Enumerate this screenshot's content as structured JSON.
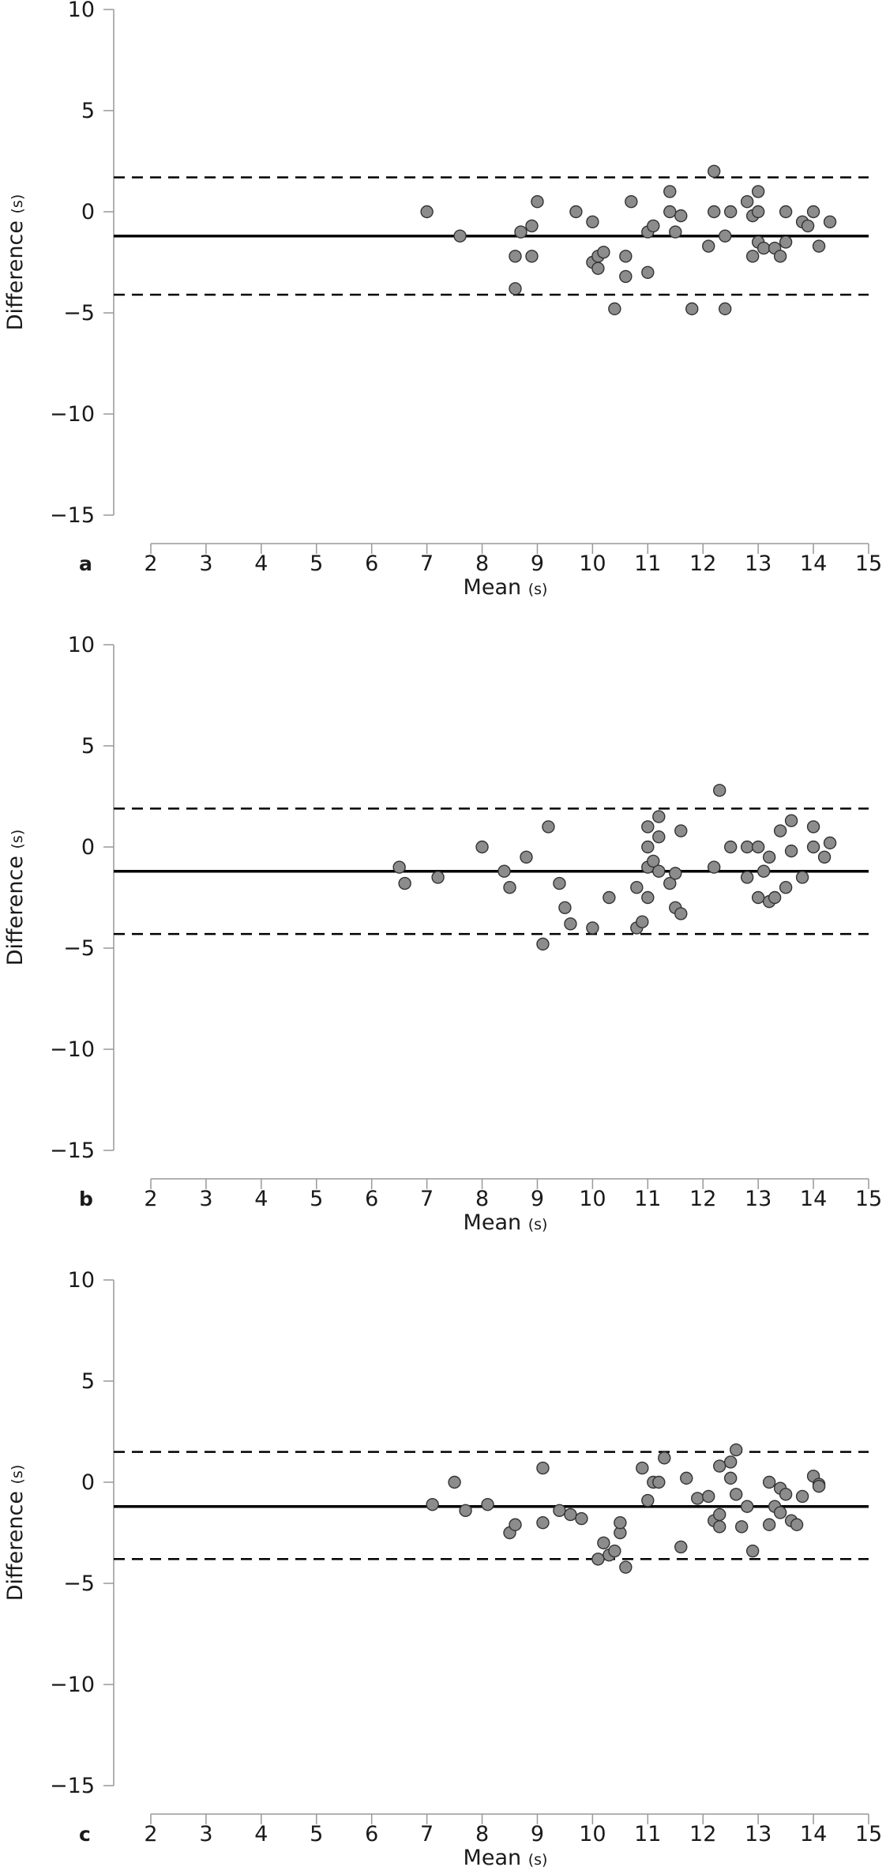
{
  "chart_data": [
    {
      "type": "scatter",
      "panel_label": "a",
      "xlabel": "Mean",
      "xlabel_unit": "(s)",
      "ylabel": "Difference",
      "ylabel_unit": "(s)",
      "xlim": [
        2,
        15
      ],
      "ylim": [
        -15,
        10
      ],
      "xticks": [
        2,
        3,
        4,
        5,
        6,
        7,
        8,
        9,
        10,
        11,
        12,
        13,
        14,
        15
      ],
      "yticks": [
        10,
        5,
        0,
        -5,
        -10,
        -15
      ],
      "mean_line": -1.2,
      "limits_of_agreement": [
        1.7,
        -4.1
      ],
      "grid": false,
      "point_color": "#8c8c8c",
      "points": [
        [
          7.0,
          0.0
        ],
        [
          7.6,
          -1.2
        ],
        [
          8.6,
          -2.2
        ],
        [
          8.6,
          -3.8
        ],
        [
          8.7,
          -1.0
        ],
        [
          8.9,
          -0.7
        ],
        [
          8.9,
          -2.2
        ],
        [
          9.0,
          0.5
        ],
        [
          9.7,
          0.0
        ],
        [
          10.0,
          -2.5
        ],
        [
          10.0,
          -0.5
        ],
        [
          10.1,
          -2.2
        ],
        [
          10.1,
          -2.8
        ],
        [
          10.2,
          -2.0
        ],
        [
          10.4,
          -4.8
        ],
        [
          10.6,
          -2.2
        ],
        [
          10.6,
          -3.2
        ],
        [
          10.7,
          0.5
        ],
        [
          11.0,
          -1.0
        ],
        [
          11.0,
          -3.0
        ],
        [
          11.1,
          -0.7
        ],
        [
          11.4,
          1.0
        ],
        [
          11.4,
          0.0
        ],
        [
          11.5,
          -1.0
        ],
        [
          11.6,
          -0.2
        ],
        [
          11.8,
          -4.8
        ],
        [
          12.1,
          -1.7
        ],
        [
          12.2,
          2.0
        ],
        [
          12.2,
          0.0
        ],
        [
          12.4,
          -1.2
        ],
        [
          12.4,
          -4.8
        ],
        [
          12.5,
          0.0
        ],
        [
          12.8,
          0.5
        ],
        [
          12.9,
          -0.2
        ],
        [
          12.9,
          -2.2
        ],
        [
          13.0,
          1.0
        ],
        [
          13.0,
          0.0
        ],
        [
          13.0,
          -1.5
        ],
        [
          13.1,
          -1.8
        ],
        [
          13.3,
          -1.8
        ],
        [
          13.4,
          -2.2
        ],
        [
          13.5,
          0.0
        ],
        [
          13.5,
          -1.5
        ],
        [
          13.8,
          -0.5
        ],
        [
          13.9,
          -0.7
        ],
        [
          14.0,
          0.0
        ],
        [
          14.1,
          -1.7
        ],
        [
          14.3,
          -0.5
        ]
      ]
    },
    {
      "type": "scatter",
      "panel_label": "b",
      "xlabel": "Mean",
      "xlabel_unit": "(s)",
      "ylabel": "Difference",
      "ylabel_unit": "(s)",
      "xlim": [
        2,
        15
      ],
      "ylim": [
        -15,
        10
      ],
      "xticks": [
        2,
        3,
        4,
        5,
        6,
        7,
        8,
        9,
        10,
        11,
        12,
        13,
        14,
        15
      ],
      "yticks": [
        10,
        5,
        0,
        -5,
        -10,
        -15
      ],
      "mean_line": -1.2,
      "limits_of_agreement": [
        1.9,
        -4.3
      ],
      "grid": false,
      "point_color": "#8c8c8c",
      "points": [
        [
          6.5,
          -1.0
        ],
        [
          6.6,
          -1.8
        ],
        [
          7.2,
          -1.5
        ],
        [
          8.0,
          0.0
        ],
        [
          8.4,
          -1.2
        ],
        [
          8.5,
          -2.0
        ],
        [
          8.8,
          -0.5
        ],
        [
          9.1,
          -4.8
        ],
        [
          9.2,
          1.0
        ],
        [
          9.4,
          -1.8
        ],
        [
          9.5,
          -3.0
        ],
        [
          9.6,
          -3.8
        ],
        [
          10.0,
          -4.0
        ],
        [
          10.3,
          -2.5
        ],
        [
          10.8,
          -2.0
        ],
        [
          10.8,
          -4.0
        ],
        [
          10.9,
          -3.7
        ],
        [
          11.0,
          -1.0
        ],
        [
          11.0,
          1.0
        ],
        [
          11.0,
          0.0
        ],
        [
          11.0,
          -2.5
        ],
        [
          11.1,
          -0.7
        ],
        [
          11.2,
          -1.2
        ],
        [
          11.2,
          0.5
        ],
        [
          11.2,
          1.5
        ],
        [
          11.4,
          -1.8
        ],
        [
          11.5,
          -1.3
        ],
        [
          11.5,
          -3.0
        ],
        [
          11.6,
          0.8
        ],
        [
          11.6,
          -3.3
        ],
        [
          12.2,
          -1.0
        ],
        [
          12.3,
          2.8
        ],
        [
          12.5,
          0.0
        ],
        [
          12.8,
          0.0
        ],
        [
          12.8,
          -1.5
        ],
        [
          13.0,
          0.0
        ],
        [
          13.0,
          -2.5
        ],
        [
          13.1,
          -1.2
        ],
        [
          13.2,
          -2.7
        ],
        [
          13.2,
          -0.5
        ],
        [
          13.3,
          -2.5
        ],
        [
          13.4,
          0.8
        ],
        [
          13.5,
          -2.0
        ],
        [
          13.6,
          1.3
        ],
        [
          13.6,
          -0.2
        ],
        [
          13.8,
          -1.5
        ],
        [
          14.0,
          1.0
        ],
        [
          14.0,
          0.0
        ],
        [
          14.2,
          -0.5
        ],
        [
          14.3,
          0.2
        ]
      ]
    },
    {
      "type": "scatter",
      "panel_label": "c",
      "xlabel": "Mean",
      "xlabel_unit": "(s)",
      "ylabel": "Difference",
      "ylabel_unit": "(s)",
      "xlim": [
        2,
        15
      ],
      "ylim": [
        -15,
        10
      ],
      "xticks": [
        2,
        3,
        4,
        5,
        6,
        7,
        8,
        9,
        10,
        11,
        12,
        13,
        14,
        15
      ],
      "yticks": [
        10,
        5,
        0,
        -5,
        -10,
        -15
      ],
      "mean_line": -1.2,
      "limits_of_agreement": [
        1.5,
        -3.8
      ],
      "grid": false,
      "point_color": "#8c8c8c",
      "points": [
        [
          7.1,
          -1.1
        ],
        [
          7.5,
          0.0
        ],
        [
          7.7,
          -1.4
        ],
        [
          8.1,
          -1.1
        ],
        [
          8.5,
          -2.5
        ],
        [
          8.6,
          -2.1
        ],
        [
          9.1,
          0.7
        ],
        [
          9.1,
          -2.0
        ],
        [
          9.4,
          -1.4
        ],
        [
          9.6,
          -1.6
        ],
        [
          9.8,
          -1.8
        ],
        [
          10.1,
          -3.8
        ],
        [
          10.2,
          -3.0
        ],
        [
          10.3,
          -3.6
        ],
        [
          10.4,
          -3.4
        ],
        [
          10.5,
          -2.5
        ],
        [
          10.5,
          -2.0
        ],
        [
          10.6,
          -4.2
        ],
        [
          10.9,
          0.7
        ],
        [
          11.0,
          -0.9
        ],
        [
          11.1,
          0.0
        ],
        [
          11.2,
          0.0
        ],
        [
          11.3,
          1.2
        ],
        [
          11.6,
          -3.2
        ],
        [
          11.7,
          0.2
        ],
        [
          11.9,
          -0.8
        ],
        [
          12.1,
          -0.7
        ],
        [
          12.2,
          -1.9
        ],
        [
          12.3,
          -2.2
        ],
        [
          12.3,
          -1.6
        ],
        [
          12.3,
          0.8
        ],
        [
          12.5,
          0.2
        ],
        [
          12.5,
          1.0
        ],
        [
          12.6,
          1.6
        ],
        [
          12.6,
          -0.6
        ],
        [
          12.7,
          -2.2
        ],
        [
          12.8,
          -1.2
        ],
        [
          12.9,
          -3.4
        ],
        [
          13.2,
          -2.1
        ],
        [
          13.2,
          0.0
        ],
        [
          13.3,
          -1.2
        ],
        [
          13.4,
          -1.5
        ],
        [
          13.4,
          -0.3
        ],
        [
          13.5,
          -0.6
        ],
        [
          13.6,
          -1.9
        ],
        [
          13.7,
          -2.1
        ],
        [
          13.8,
          -0.7
        ],
        [
          14.0,
          0.3
        ],
        [
          14.1,
          -0.1
        ],
        [
          14.1,
          -0.2
        ]
      ]
    }
  ]
}
